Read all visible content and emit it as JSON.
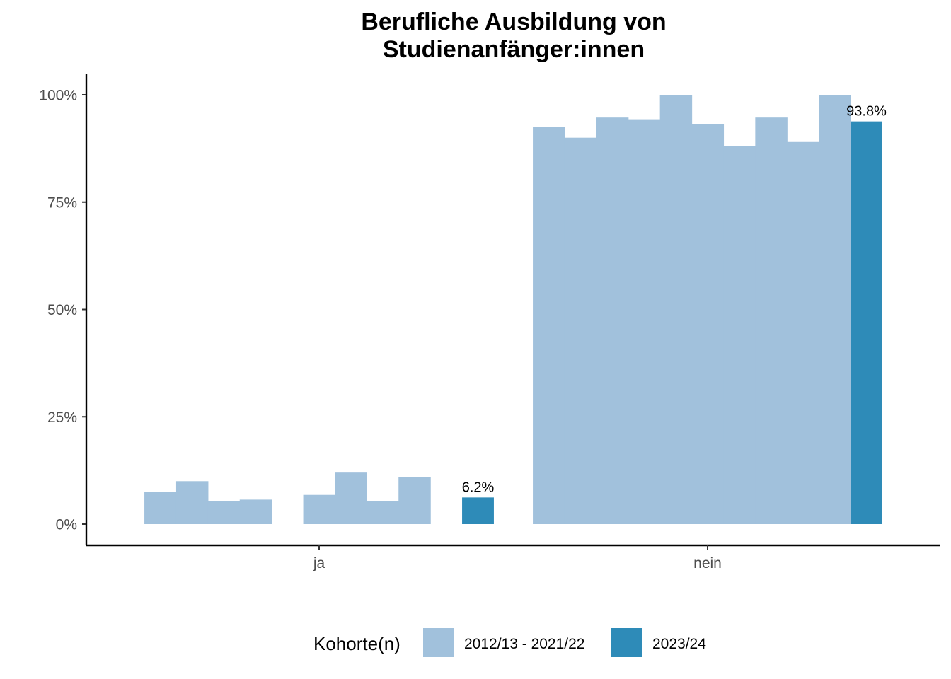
{
  "chart_data": {
    "type": "bar",
    "title_lines": [
      "Berufliche Ausbildung von",
      "Studienanfänger:innen"
    ],
    "categories": [
      "ja",
      "nein"
    ],
    "ylim": [
      0,
      1.05
    ],
    "y_ticks": [
      {
        "value": 0,
        "label": "0%"
      },
      {
        "value": 0.25,
        "label": "25%"
      },
      {
        "value": 0.5,
        "label": "50%"
      },
      {
        "value": 0.75,
        "label": "75%"
      },
      {
        "value": 1.0,
        "label": "100%"
      }
    ],
    "grid": false,
    "legend_placement": "bottom",
    "series": [
      {
        "name": "2012/13 - 2021/22",
        "color": "#a1c1dc",
        "cohort_values": {
          "ja": [
            0.075,
            0.1,
            0.053,
            0.057,
            null,
            0.068,
            0.12,
            0.053,
            0.11,
            null
          ],
          "nein": [
            0.925,
            0.9,
            0.947,
            0.943,
            1.0,
            0.932,
            0.88,
            0.947,
            0.89,
            1.0
          ]
        }
      },
      {
        "name": "2023/24",
        "color": "#2e8bb8",
        "values": {
          "ja": 0.062,
          "nein": 0.938
        },
        "labels": {
          "ja": "6.2%",
          "nein": "93.8%"
        }
      }
    ],
    "legend": {
      "title": "Kohorte(n)",
      "items": [
        {
          "label": "2012/13 - 2021/22",
          "color": "#a1c1dc"
        },
        {
          "label": "2023/24",
          "color": "#2e8bb8"
        }
      ]
    }
  }
}
